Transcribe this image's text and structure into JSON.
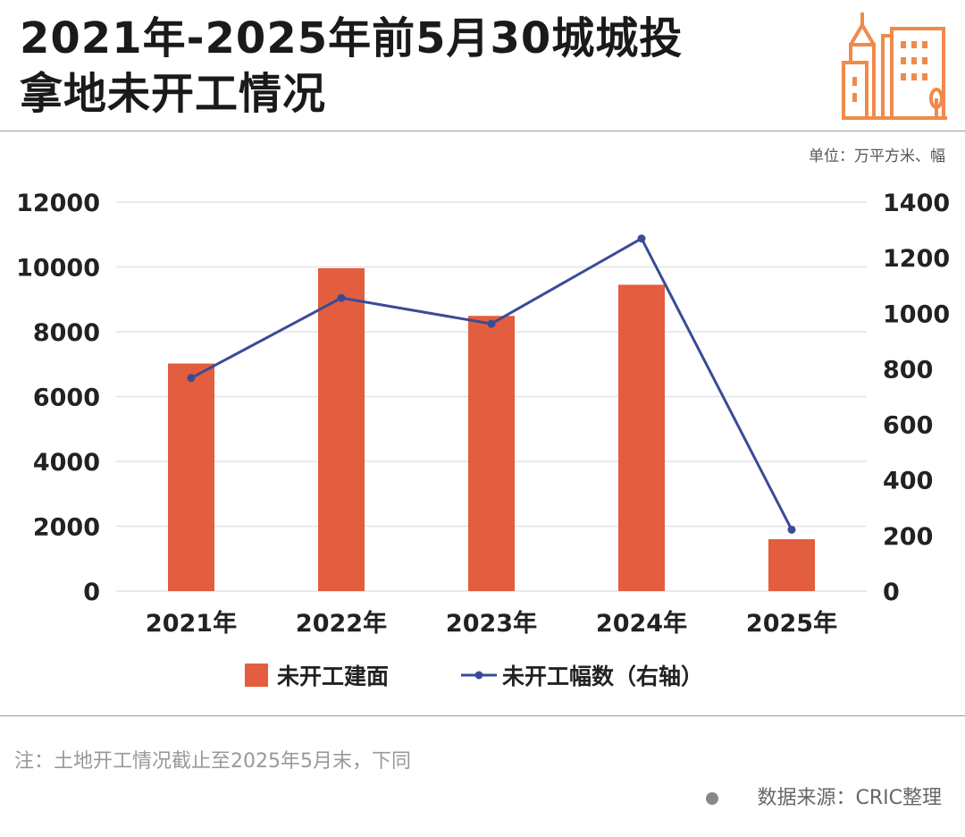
{
  "title_line1": "2021年-2025年前5月30城城投",
  "title_line2": "拿地未开工情况",
  "unit": "单位：万平方米、幅",
  "note": "注：土地开工情况截止至2025年5月末，下同",
  "source": "数据来源：CRIC整理",
  "icon": "city-buildings-icon",
  "chart_data": {
    "type": "bar+line",
    "categories": [
      "2021年",
      "2022年",
      "2023年",
      "2024年",
      "2025年"
    ],
    "series": [
      {
        "name": "未开工建面",
        "type": "bar",
        "axis": "left",
        "color": "#e35d3f",
        "values": [
          7020,
          9960,
          8490,
          9450,
          1600
        ]
      },
      {
        "name": "未开工幅数（右轴）",
        "type": "line",
        "axis": "right",
        "color": "#3a4b96",
        "values": [
          767,
          1055,
          962,
          1269,
          221
        ]
      }
    ],
    "ylim_left": [
      0,
      12000
    ],
    "yticks_left": [
      "0",
      "2000",
      "4000",
      "6000",
      "8000",
      "10000",
      "12000"
    ],
    "ylim_right": [
      0,
      1400
    ],
    "yticks_right": [
      "0",
      "200",
      "400",
      "600",
      "800",
      "1000",
      "1200",
      "1400"
    ],
    "grid": true,
    "legend": "bottom"
  }
}
